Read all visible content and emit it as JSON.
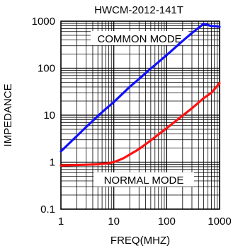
{
  "chart_data": {
    "type": "line",
    "title": "HWCM-2012-141T",
    "xlabel": "FREQ(MHZ)",
    "ylabel": "IMPEDANCE",
    "xscale": "log",
    "yscale": "log",
    "xlim": [
      1,
      1000
    ],
    "ylim": [
      0.1,
      1000
    ],
    "grid": true,
    "x_ticks": [
      "1",
      "10",
      "100",
      "1000"
    ],
    "y_ticks": [
      "0.1",
      "1",
      "10",
      "100",
      "1000"
    ],
    "annotations": [
      "COMMON MODE",
      "NORMAL MODE"
    ],
    "series": [
      {
        "color": "#1010ff",
        "x": [
          1,
          2,
          3,
          5,
          7,
          10,
          20,
          30,
          50,
          70,
          100,
          200,
          300,
          500,
          700,
          800,
          900,
          1000
        ],
        "y": [
          1.7,
          3.6,
          5.6,
          9.6,
          13.5,
          19,
          40,
          59,
          98,
          135,
          190,
          380,
          560,
          880,
          790,
          790,
          780,
          760
        ]
      },
      {
        "color": "#ff1010",
        "x": [
          1,
          2,
          3,
          5,
          7,
          10,
          15,
          20,
          30,
          50,
          70,
          100,
          200,
          300,
          500,
          700,
          1000
        ],
        "y": [
          0.85,
          0.87,
          0.88,
          0.9,
          0.93,
          1.0,
          1.2,
          1.45,
          1.9,
          2.9,
          3.9,
          5.3,
          9.8,
          14,
          23,
          30,
          48
        ]
      }
    ],
    "colors": {
      "common_mode": "#1010ff",
      "normal_mode": "#ff1010"
    }
  }
}
